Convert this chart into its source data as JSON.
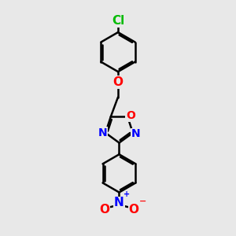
{
  "background_color": "#e8e8e8",
  "bond_color": "#000000",
  "bond_width": 1.8,
  "atom_colors": {
    "Cl": "#00bb00",
    "O": "#ff0000",
    "N": "#0000ff"
  },
  "font_size": 11
}
